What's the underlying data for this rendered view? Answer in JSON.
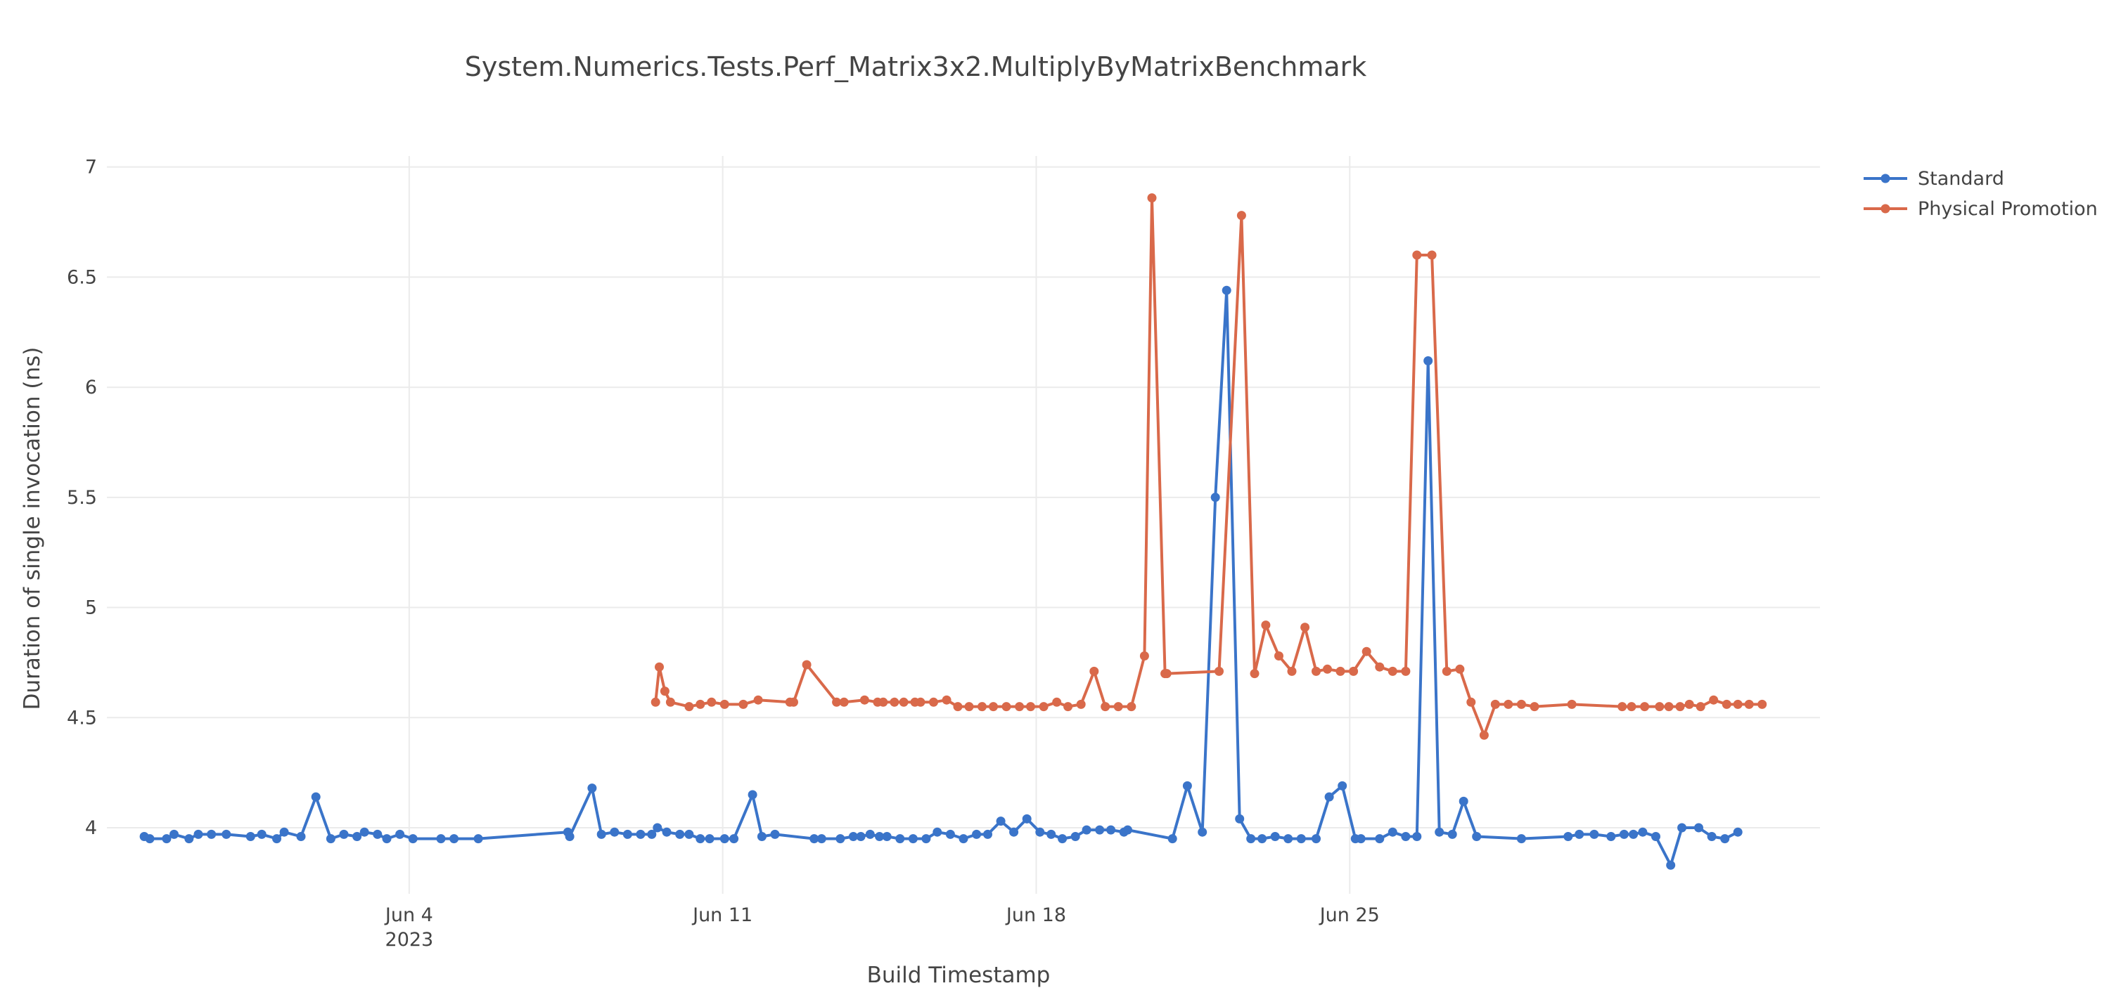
{
  "chart_data": {
    "type": "line",
    "title": "System.Numerics.Tests.Perf_Matrix3x2.MultiplyByMatrixBenchmark",
    "xlabel": "Build Timestamp",
    "ylabel": "Duration of single invocation (ns)",
    "xlim": [
      "2023-05-28T06:00",
      "2023-07-05T12:00"
    ],
    "ylim": [
      3.7,
      7.05
    ],
    "grid": true,
    "legend_position": "top-right",
    "x_ticks": [
      {
        "date": "2023-06-04T00:00",
        "label": "Jun 4",
        "sublabel": "2023"
      },
      {
        "date": "2023-06-11T00:00",
        "label": "Jun 11",
        "sublabel": ""
      },
      {
        "date": "2023-06-18T00:00",
        "label": "Jun 18",
        "sublabel": ""
      },
      {
        "date": "2023-06-25T00:00",
        "label": "Jun 25",
        "sublabel": ""
      }
    ],
    "y_ticks": [
      {
        "value": 4,
        "label": "4"
      },
      {
        "value": 4.5,
        "label": "4.5"
      },
      {
        "value": 5,
        "label": "5"
      },
      {
        "value": 5.5,
        "label": "5.5"
      },
      {
        "value": 6,
        "label": "6"
      },
      {
        "value": 6.5,
        "label": "6.5"
      },
      {
        "value": 7,
        "label": "7"
      }
    ],
    "series": [
      {
        "name": "Standard",
        "color": "#3a74c9",
        "points": [
          [
            "2023-05-29T02:00",
            3.96
          ],
          [
            "2023-05-29T05:00",
            3.95
          ],
          [
            "2023-05-29T14:00",
            3.95
          ],
          [
            "2023-05-29T18:00",
            3.97
          ],
          [
            "2023-05-30T02:00",
            3.95
          ],
          [
            "2023-05-30T07:00",
            3.97
          ],
          [
            "2023-05-30T14:00",
            3.97
          ],
          [
            "2023-05-30T22:00",
            3.97
          ],
          [
            "2023-05-31T11:00",
            3.96
          ],
          [
            "2023-05-31T17:00",
            3.97
          ],
          [
            "2023-06-01T01:00",
            3.95
          ],
          [
            "2023-06-01T05:00",
            3.98
          ],
          [
            "2023-06-01T14:00",
            3.96
          ],
          [
            "2023-06-01T22:00",
            4.14
          ],
          [
            "2023-06-02T06:00",
            3.95
          ],
          [
            "2023-06-02T13:00",
            3.97
          ],
          [
            "2023-06-02T20:00",
            3.96
          ],
          [
            "2023-06-03T00:00",
            3.98
          ],
          [
            "2023-06-03T07:00",
            3.97
          ],
          [
            "2023-06-03T12:00",
            3.95
          ],
          [
            "2023-06-03T19:00",
            3.97
          ],
          [
            "2023-06-04T02:00",
            3.95
          ],
          [
            "2023-06-04T17:00",
            3.95
          ],
          [
            "2023-06-05T00:00",
            3.95
          ],
          [
            "2023-06-05T13:00",
            3.95
          ],
          [
            "2023-06-07T13:00",
            3.98
          ],
          [
            "2023-06-07T14:00",
            3.96
          ],
          [
            "2023-06-08T02:00",
            4.18
          ],
          [
            "2023-06-08T07:00",
            3.97
          ],
          [
            "2023-06-08T14:00",
            3.98
          ],
          [
            "2023-06-08T21:00",
            3.97
          ],
          [
            "2023-06-09T04:00",
            3.97
          ],
          [
            "2023-06-09T10:00",
            3.97
          ],
          [
            "2023-06-09T13:00",
            4.0
          ],
          [
            "2023-06-09T18:00",
            3.98
          ],
          [
            "2023-06-10T01:00",
            3.97
          ],
          [
            "2023-06-10T06:00",
            3.97
          ],
          [
            "2023-06-10T12:00",
            3.95
          ],
          [
            "2023-06-10T17:00",
            3.95
          ],
          [
            "2023-06-11T01:00",
            3.95
          ],
          [
            "2023-06-11T06:00",
            3.95
          ],
          [
            "2023-06-11T16:00",
            4.15
          ],
          [
            "2023-06-11T21:00",
            3.96
          ],
          [
            "2023-06-12T04:00",
            3.97
          ],
          [
            "2023-06-13T01:00",
            3.95
          ],
          [
            "2023-06-13T05:00",
            3.95
          ],
          [
            "2023-06-13T15:00",
            3.95
          ],
          [
            "2023-06-13T22:00",
            3.96
          ],
          [
            "2023-06-14T02:00",
            3.96
          ],
          [
            "2023-06-14T07:00",
            3.97
          ],
          [
            "2023-06-14T12:00",
            3.96
          ],
          [
            "2023-06-14T16:00",
            3.96
          ],
          [
            "2023-06-14T23:00",
            3.95
          ],
          [
            "2023-06-15T06:00",
            3.95
          ],
          [
            "2023-06-15T13:00",
            3.95
          ],
          [
            "2023-06-15T19:00",
            3.98
          ],
          [
            "2023-06-16T02:00",
            3.97
          ],
          [
            "2023-06-16T09:00",
            3.95
          ],
          [
            "2023-06-16T16:00",
            3.97
          ],
          [
            "2023-06-16T22:00",
            3.97
          ],
          [
            "2023-06-17T05:00",
            4.03
          ],
          [
            "2023-06-17T12:00",
            3.98
          ],
          [
            "2023-06-17T19:00",
            4.04
          ],
          [
            "2023-06-18T02:00",
            3.98
          ],
          [
            "2023-06-18T08:00",
            3.97
          ],
          [
            "2023-06-18T14:00",
            3.95
          ],
          [
            "2023-06-18T21:00",
            3.96
          ],
          [
            "2023-06-19T03:00",
            3.99
          ],
          [
            "2023-06-19T10:00",
            3.99
          ],
          [
            "2023-06-19T16:00",
            3.99
          ],
          [
            "2023-06-19T23:00",
            3.98
          ],
          [
            "2023-06-20T01:00",
            3.99
          ],
          [
            "2023-06-21T01:00",
            3.95
          ],
          [
            "2023-06-21T09:00",
            4.19
          ],
          [
            "2023-06-21T17:00",
            3.98
          ],
          [
            "2023-06-22T00:00",
            5.5
          ],
          [
            "2023-06-22T06:00",
            6.44
          ],
          [
            "2023-06-22T13:00",
            4.04
          ],
          [
            "2023-06-22T19:00",
            3.95
          ],
          [
            "2023-06-23T01:00",
            3.95
          ],
          [
            "2023-06-23T08:00",
            3.96
          ],
          [
            "2023-06-23T15:00",
            3.95
          ],
          [
            "2023-06-23T22:00",
            3.95
          ],
          [
            "2023-06-24T06:00",
            3.95
          ],
          [
            "2023-06-24T13:00",
            4.14
          ],
          [
            "2023-06-24T20:00",
            4.19
          ],
          [
            "2023-06-25T03:00",
            3.95
          ],
          [
            "2023-06-25T06:00",
            3.95
          ],
          [
            "2023-06-25T16:00",
            3.95
          ],
          [
            "2023-06-25T23:00",
            3.98
          ],
          [
            "2023-06-26T06:00",
            3.96
          ],
          [
            "2023-06-26T12:00",
            3.96
          ],
          [
            "2023-06-26T18:00",
            6.12
          ],
          [
            "2023-06-27T00:00",
            3.98
          ],
          [
            "2023-06-27T07:00",
            3.97
          ],
          [
            "2023-06-27T13:00",
            4.12
          ],
          [
            "2023-06-27T20:00",
            3.96
          ],
          [
            "2023-06-28T20:00",
            3.95
          ],
          [
            "2023-06-29T21:00",
            3.96
          ],
          [
            "2023-06-30T03:00",
            3.97
          ],
          [
            "2023-06-30T11:00",
            3.97
          ],
          [
            "2023-06-30T20:00",
            3.96
          ],
          [
            "2023-07-01T03:00",
            3.97
          ],
          [
            "2023-07-01T08:00",
            3.97
          ],
          [
            "2023-07-01T13:00",
            3.98
          ],
          [
            "2023-07-01T20:00",
            3.96
          ],
          [
            "2023-07-02T04:00",
            3.83
          ],
          [
            "2023-07-02T10:00",
            4.0
          ],
          [
            "2023-07-02T19:00",
            4.0
          ],
          [
            "2023-07-03T02:00",
            3.96
          ],
          [
            "2023-07-03T09:00",
            3.95
          ],
          [
            "2023-07-03T16:00",
            3.98
          ]
        ]
      },
      {
        "name": "Physical Promotion",
        "color": "#d9694a",
        "points": [
          [
            "2023-06-09T12:00",
            4.57
          ],
          [
            "2023-06-09T14:00",
            4.73
          ],
          [
            "2023-06-09T17:00",
            4.62
          ],
          [
            "2023-06-09T20:00",
            4.57
          ],
          [
            "2023-06-10T06:00",
            4.55
          ],
          [
            "2023-06-10T12:00",
            4.56
          ],
          [
            "2023-06-10T18:00",
            4.57
          ],
          [
            "2023-06-11T01:00",
            4.56
          ],
          [
            "2023-06-11T11:00",
            4.56
          ],
          [
            "2023-06-11T19:00",
            4.58
          ],
          [
            "2023-06-12T12:00",
            4.57
          ],
          [
            "2023-06-12T14:00",
            4.57
          ],
          [
            "2023-06-12T21:00",
            4.74
          ],
          [
            "2023-06-13T13:00",
            4.57
          ],
          [
            "2023-06-13T17:00",
            4.57
          ],
          [
            "2023-06-14T04:00",
            4.58
          ],
          [
            "2023-06-14T11:00",
            4.57
          ],
          [
            "2023-06-14T14:00",
            4.57
          ],
          [
            "2023-06-14T20:00",
            4.57
          ],
          [
            "2023-06-15T01:00",
            4.57
          ],
          [
            "2023-06-15T07:00",
            4.57
          ],
          [
            "2023-06-15T10:00",
            4.57
          ],
          [
            "2023-06-15T17:00",
            4.57
          ],
          [
            "2023-06-16T00:00",
            4.58
          ],
          [
            "2023-06-16T06:00",
            4.55
          ],
          [
            "2023-06-16T12:00",
            4.55
          ],
          [
            "2023-06-16T19:00",
            4.55
          ],
          [
            "2023-06-17T01:00",
            4.55
          ],
          [
            "2023-06-17T08:00",
            4.55
          ],
          [
            "2023-06-17T15:00",
            4.55
          ],
          [
            "2023-06-17T21:00",
            4.55
          ],
          [
            "2023-06-18T04:00",
            4.55
          ],
          [
            "2023-06-18T11:00",
            4.57
          ],
          [
            "2023-06-18T17:00",
            4.55
          ],
          [
            "2023-06-19T00:00",
            4.56
          ],
          [
            "2023-06-19T07:00",
            4.71
          ],
          [
            "2023-06-19T13:00",
            4.55
          ],
          [
            "2023-06-19T20:00",
            4.55
          ],
          [
            "2023-06-20T03:00",
            4.55
          ],
          [
            "2023-06-20T10:00",
            4.78
          ],
          [
            "2023-06-20T14:00",
            6.86
          ],
          [
            "2023-06-20T21:00",
            4.7
          ],
          [
            "2023-06-20T22:00",
            4.7
          ],
          [
            "2023-06-22T02:00",
            4.71
          ],
          [
            "2023-06-22T14:00",
            6.78
          ],
          [
            "2023-06-22T21:00",
            4.7
          ],
          [
            "2023-06-23T03:00",
            4.92
          ],
          [
            "2023-06-23T10:00",
            4.78
          ],
          [
            "2023-06-23T17:00",
            4.71
          ],
          [
            "2023-06-24T00:00",
            4.91
          ],
          [
            "2023-06-24T06:00",
            4.71
          ],
          [
            "2023-06-24T12:00",
            4.72
          ],
          [
            "2023-06-24T19:00",
            4.71
          ],
          [
            "2023-06-25T02:00",
            4.71
          ],
          [
            "2023-06-25T09:00",
            4.8
          ],
          [
            "2023-06-25T16:00",
            4.73
          ],
          [
            "2023-06-25T23:00",
            4.71
          ],
          [
            "2023-06-26T06:00",
            4.71
          ],
          [
            "2023-06-26T12:00",
            6.6
          ],
          [
            "2023-06-26T20:00",
            6.6
          ],
          [
            "2023-06-27T04:00",
            4.71
          ],
          [
            "2023-06-27T11:00",
            4.72
          ],
          [
            "2023-06-27T17:00",
            4.57
          ],
          [
            "2023-06-28T00:00",
            4.42
          ],
          [
            "2023-06-28T06:00",
            4.56
          ],
          [
            "2023-06-28T13:00",
            4.56
          ],
          [
            "2023-06-28T20:00",
            4.56
          ],
          [
            "2023-06-29T03:00",
            4.55
          ],
          [
            "2023-06-29T23:00",
            4.56
          ],
          [
            "2023-07-01T02:00",
            4.55
          ],
          [
            "2023-07-01T07:00",
            4.55
          ],
          [
            "2023-07-01T14:00",
            4.55
          ],
          [
            "2023-07-01T22:00",
            4.55
          ],
          [
            "2023-07-02T03:00",
            4.55
          ],
          [
            "2023-07-02T09:00",
            4.55
          ],
          [
            "2023-07-02T14:00",
            4.56
          ],
          [
            "2023-07-02T20:00",
            4.55
          ],
          [
            "2023-07-03T03:00",
            4.58
          ],
          [
            "2023-07-03T10:00",
            4.56
          ],
          [
            "2023-07-03T16:00",
            4.56
          ],
          [
            "2023-07-03T22:00",
            4.56
          ],
          [
            "2023-07-04T05:00",
            4.56
          ]
        ]
      }
    ]
  }
}
